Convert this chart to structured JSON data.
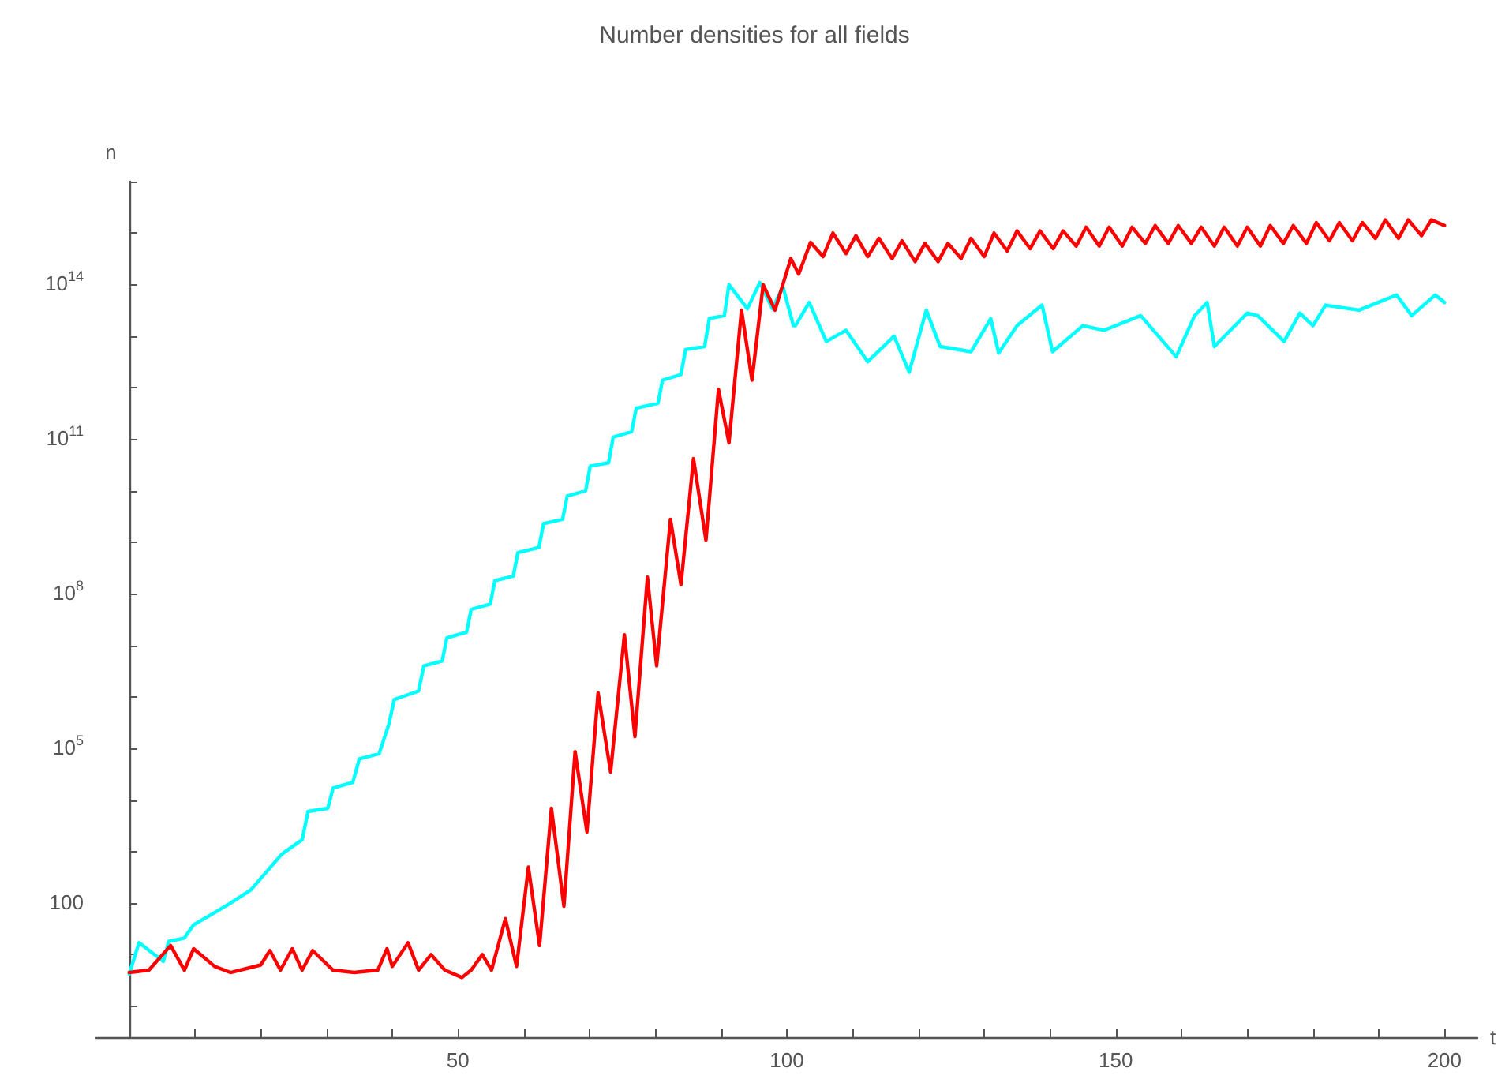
{
  "chart_data": {
    "type": "line",
    "title": "Number densities for all fields",
    "xlabel": "t",
    "ylabel": "n",
    "log": "y",
    "grid": false,
    "marker": "none",
    "line_style": "solid",
    "xlim": [
      -5,
      205
    ],
    "xticks": [
      {
        "value": 0,
        "label": null
      },
      {
        "value": 10,
        "label": null
      },
      {
        "value": 20,
        "label": null
      },
      {
        "value": 30,
        "label": null
      },
      {
        "value": 40,
        "label": null
      },
      50,
      {
        "value": 60,
        "label": null
      },
      {
        "value": 70,
        "label": null
      },
      {
        "value": 80,
        "label": null
      },
      {
        "value": 90,
        "label": null
      },
      100,
      {
        "value": 110,
        "label": null
      },
      {
        "value": 120,
        "label": null
      },
      {
        "value": 130,
        "label": null
      },
      {
        "value": 140,
        "label": null
      },
      150,
      {
        "value": 160,
        "label": null
      },
      {
        "value": 170,
        "label": null
      },
      {
        "value": 180,
        "label": null
      },
      {
        "value": 190,
        "label": null
      },
      200
    ],
    "ylim": [
      0.25,
      1e+16
    ],
    "yticks": [
      {
        "value": 1,
        "label": null
      },
      {
        "value": 10,
        "label": null
      },
      100,
      {
        "value": 1000,
        "label": null
      },
      {
        "value": 10000,
        "label": null
      },
      {
        "value": 100000,
        "label": "10$^{5}$"
      },
      {
        "value": 1000000,
        "label": null
      },
      {
        "value": 10000000,
        "label": null
      },
      {
        "value": 100000000,
        "label": "10$^{8}$"
      },
      {
        "value": 1000000000,
        "label": null
      },
      {
        "value": 10000000000,
        "label": null
      },
      {
        "value": 100000000000,
        "label": "10$^{11}$"
      },
      {
        "value": 1000000000000,
        "label": null
      },
      {
        "value": 10000000000000,
        "label": null
      },
      {
        "value": 100000000000000,
        "label": "10$^{14}$"
      },
      {
        "value": 1000000000000000,
        "label": null
      },
      {
        "value": 1e+16,
        "label": null
      }
    ],
    "series": [
      {
        "color": "#00ffff",
        "x": [
          0,
          1.5,
          5.2,
          6,
          8.4,
          9.8,
          12.7,
          15.4,
          18.5,
          23.2,
          26.3,
          27.2,
          30.2,
          31,
          34,
          35,
          38,
          39.5,
          40.3,
          44,
          44.8,
          47.6,
          48.3,
          51.3,
          52,
          54.9,
          55.6,
          58.4,
          59.1,
          62.3,
          63,
          65.9,
          66.6,
          69.4,
          70.1,
          72.9,
          73.6,
          76.4,
          77.1,
          80.4,
          81.1,
          83.9,
          84.6,
          87.5,
          88.2,
          90.5,
          91.2,
          94,
          95.9,
          97.8,
          99.4,
          101,
          101.3,
          103.4,
          106,
          109,
          112.3,
          116.3,
          118.6,
          121.2,
          123.3,
          128,
          131,
          132.2,
          135,
          138.8,
          140.4,
          145,
          148.2,
          153.8,
          159.2,
          162,
          163.9,
          165,
          170,
          171.6,
          175.6,
          178,
          180,
          181.9,
          187,
          192.7,
          195,
          198.6,
          200
        ],
        "values": [
          4.2,
          17,
          7.4,
          18,
          21,
          38,
          62,
          100,
          180,
          890,
          1700,
          6000,
          6900,
          17000,
          22000,
          63000,
          79000,
          300000,
          890000,
          1300000,
          4000000,
          5000000,
          14000000,
          18000000,
          50000000,
          63000000,
          180000000,
          220000000,
          630000000,
          790000000,
          2300000000,
          2800000000,
          7900000000,
          10000000000,
          30000000000,
          35000000000,
          110000000000,
          140000000000,
          400000000000,
          500000000000,
          1400000000000,
          1800000000000,
          5500000000000,
          6300000000000,
          22000000000000,
          25000000000000,
          100000000000000,
          34000000000000,
          110000000000000,
          34000000000000,
          91000000000000,
          16000000000000,
          16000000000000,
          45000000000000,
          7900000000000,
          13000000000000,
          3200000000000,
          10000000000000,
          2000000000000,
          32000000000000,
          6300000000000,
          5000000000000,
          22000000000000,
          4700000000000,
          16000000000000,
          40000000000000,
          5000000000000,
          16000000000000,
          13000000000000,
          25000000000000,
          4000000000000,
          25000000000000,
          45000000000000,
          6300000000000,
          28000000000000,
          25000000000000,
          7900000000000,
          28000000000000,
          16000000000000,
          40000000000000,
          32000000000000,
          63000000000000,
          25000000000000,
          63000000000000,
          45000000000000
        ]
      },
      {
        "color": "#ff0000",
        "x": [
          0,
          3,
          6.3,
          8.4,
          9.8,
          13,
          15.4,
          20,
          21.4,
          23,
          24.8,
          26.3,
          27.9,
          31,
          34.2,
          37.8,
          39.2,
          40,
          42.4,
          44,
          45.9,
          48,
          50.6,
          52,
          53.7,
          55.1,
          57.2,
          58.9,
          60.7,
          62.4,
          64.2,
          66.1,
          67.8,
          69.6,
          71.3,
          73.2,
          75.3,
          76.9,
          78.8,
          80.2,
          82.3,
          83.9,
          85.8,
          87.7,
          89.6,
          91.2,
          93.1,
          94.7,
          96.4,
          98.2,
          100.6,
          101.8,
          103.6,
          105.5,
          107,
          109,
          110.5,
          112.3,
          114,
          116,
          117.5,
          119.5,
          121,
          123,
          124.5,
          126.5,
          128,
          130,
          131.5,
          133.5,
          135,
          137,
          138.5,
          140.5,
          142,
          144,
          145.5,
          147.5,
          149,
          151,
          152.5,
          154.5,
          156,
          158,
          159.5,
          161.5,
          163,
          165,
          166.5,
          168.5,
          170,
          172,
          173.5,
          175.5,
          177,
          179,
          180.5,
          182.5,
          184,
          186,
          187.5,
          189.5,
          191,
          193,
          194.5,
          196.5,
          198,
          200
        ],
        "values": [
          4.5,
          5,
          15,
          5,
          13,
          5.9,
          4.5,
          6.3,
          12,
          5,
          13,
          5,
          12,
          5,
          4.5,
          5,
          13,
          5.9,
          17,
          5,
          10,
          5,
          3.6,
          5,
          10,
          5,
          50,
          5.9,
          500,
          15,
          6900,
          87,
          87000,
          2400,
          1200000,
          35000,
          16000000,
          170000,
          210000000,
          4000000,
          2800000000,
          150000000,
          42000000000,
          1100000000,
          930000000000,
          85000000000,
          32000000000000,
          1400000000000,
          100000000000000,
          32000000000000,
          320000000000000,
          160000000000000,
          660000000000000,
          350000000000000,
          1000000000000000,
          400000000000000,
          890000000000000,
          350000000000000,
          790000000000000,
          320000000000000,
          710000000000000,
          280000000000000,
          630000000000000,
          280000000000000,
          630000000000000,
          320000000000000,
          790000000000000,
          350000000000000,
          1000000000000000,
          450000000000000,
          1100000000000000,
          500000000000000,
          1100000000000000,
          500000000000000,
          1100000000000000,
          560000000000000,
          1300000000000000,
          560000000000000,
          1300000000000000,
          560000000000000,
          1300000000000000,
          630000000000000,
          1400000000000000,
          630000000000000,
          1400000000000000,
          630000000000000,
          1300000000000000,
          560000000000000,
          1300000000000000,
          560000000000000,
          1300000000000000,
          560000000000000,
          1400000000000000,
          630000000000000,
          1400000000000000,
          630000000000000,
          1600000000000000,
          710000000000000,
          1600000000000000,
          710000000000000,
          1600000000000000,
          790000000000000,
          1800000000000000,
          790000000000000,
          1800000000000000,
          890000000000000,
          1800000000000000,
          1400000000000000
        ]
      }
    ]
  }
}
